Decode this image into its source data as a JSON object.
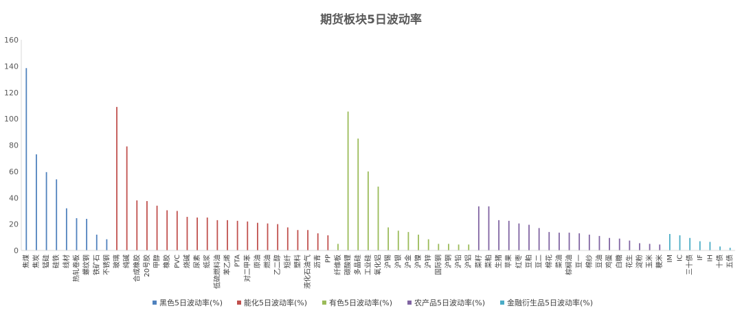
{
  "chart_data": {
    "type": "bar",
    "title": "期货板块5日波动率",
    "xlabel": "",
    "ylabel": "",
    "ylim": [
      0,
      160
    ],
    "yticks": [
      0,
      20,
      40,
      60,
      80,
      100,
      120,
      140,
      160
    ],
    "grid": false,
    "legend_position": "bottom",
    "series": [
      {
        "name": "黑色5日波动率(%)",
        "color": "#4F81BD",
        "categories": [
          "焦煤",
          "焦炭",
          "锰硅",
          "硅铁",
          "线材",
          "热轧卷板",
          "螺纹钢",
          "铁矿石",
          "不锈钢"
        ],
        "values": [
          138.5,
          73,
          59.5,
          54,
          32,
          24.5,
          24,
          12,
          8.5
        ]
      },
      {
        "name": "能化5日波动率(%)",
        "color": "#C0504D",
        "categories": [
          "玻璃",
          "纯碱",
          "合成橡胶",
          "20号胶",
          "甲醇",
          "橡胶",
          "PVC",
          "烧碱",
          "尿素",
          "纸浆",
          "低硫燃料油",
          "苯乙烯",
          "PTA",
          "对二甲苯",
          "原油",
          "燃油",
          "乙二醇",
          "短纤",
          "塑料",
          "液化石油气",
          "沥青",
          "PP"
        ],
        "values": [
          109,
          79,
          38,
          37.5,
          34,
          30.5,
          30,
          25.5,
          25,
          25,
          23,
          23,
          22.5,
          22,
          21,
          20.5,
          20,
          17.5,
          15.5,
          15.5,
          13,
          11.5
        ]
      },
      {
        "name": "有色5日波动率(%)",
        "color": "#9BBB59",
        "categories": [
          "纤维板",
          "碳酸锂",
          "多晶硅",
          "工业硅",
          "氧化铝",
          "沪锡",
          "沪银",
          "沪金",
          "沪镍",
          "沪锌",
          "国际铜",
          "沪铜",
          "沪铅",
          "沪铝"
        ],
        "values": [
          5,
          105.5,
          85,
          60,
          48.5,
          17.5,
          15,
          14,
          12,
          8.5,
          5,
          5,
          4.5,
          4.5
        ]
      },
      {
        "name": "农产品5日波动率(%)",
        "color": "#8064A2",
        "categories": [
          "菜籽",
          "菜粕",
          "生猪",
          "苹果",
          "红枣",
          "豆粕",
          "豆二",
          "棉花",
          "菜油",
          "棕榈油",
          "豆一",
          "棉纱",
          "豆油",
          "鸡蛋",
          "白糖",
          "花生",
          "淀粉",
          "玉米",
          "粳米"
        ],
        "values": [
          33.5,
          33.5,
          23,
          22.5,
          20.5,
          19.5,
          17,
          14,
          13.5,
          13.5,
          13,
          12,
          11,
          9.5,
          9,
          7.5,
          5.5,
          5,
          4.5
        ]
      },
      {
        "name": "金融衍生品5日波动率(%)",
        "color": "#4BACC6",
        "categories": [
          "IM",
          "IC",
          "三十债",
          "IF",
          "IH",
          "十债",
          "五债"
        ],
        "values": [
          12.5,
          11.5,
          9.5,
          7,
          6.5,
          3,
          2
        ]
      }
    ]
  }
}
